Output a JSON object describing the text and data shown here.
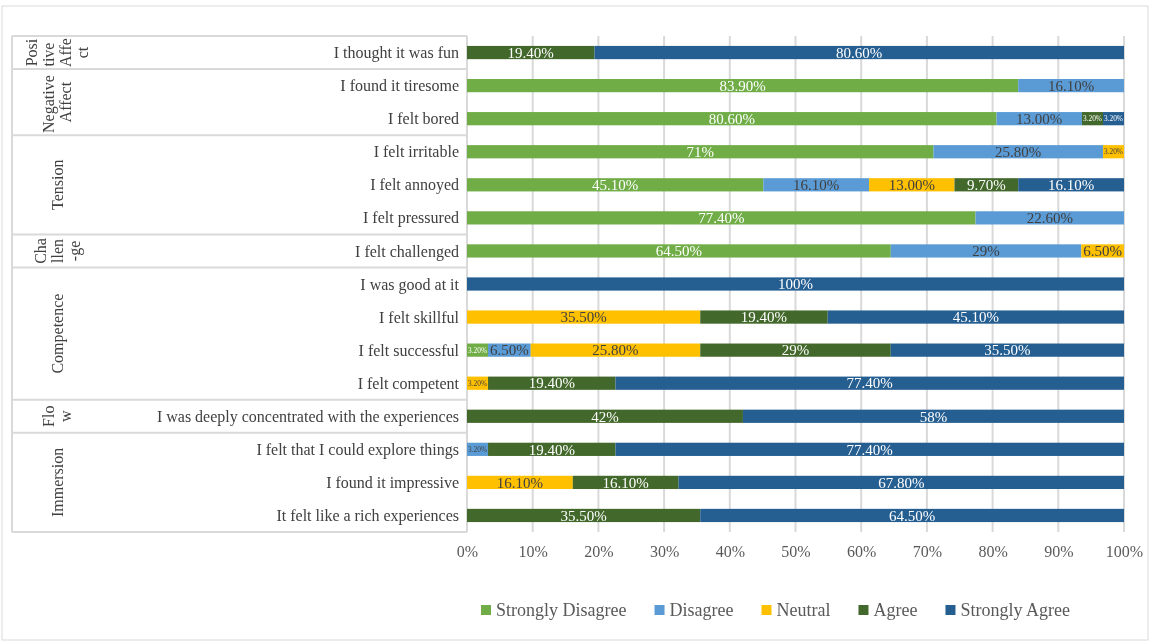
{
  "chart_data": {
    "type": "bar",
    "orientation": "horizontal",
    "stacked": true,
    "categories": [
      "I thought it was fun",
      "I found it tiresome",
      "I felt bored",
      "I felt irritable",
      "I felt annoyed",
      "I felt pressured",
      "I felt challenged",
      "I was good at it",
      "I felt skillful",
      "I felt successful",
      "I felt competent",
      "I was deeply concentrated with the experiences",
      "I felt that I could explore things",
      "I found it impressive",
      "It felt like a rich experiences"
    ],
    "series": [
      {
        "name": "Strongly Disagree",
        "color": "#70ad47",
        "values": [
          null,
          83.9,
          80.6,
          71,
          45.1,
          77.4,
          64.5,
          null,
          null,
          3.2,
          null,
          null,
          null,
          null,
          null
        ],
        "value_labels": [
          null,
          "83.90%",
          "80.60%",
          "71%",
          "45.10%",
          "77.40%",
          "64.50%",
          null,
          null,
          "3.20%",
          null,
          null,
          null,
          null,
          null
        ]
      },
      {
        "name": "Disagree",
        "color": "#5b9bd5",
        "values": [
          null,
          16.1,
          13.0,
          25.8,
          16.1,
          22.6,
          29,
          null,
          null,
          6.5,
          null,
          null,
          3.2,
          null,
          null
        ],
        "value_labels": [
          null,
          "16.10%",
          "13.00%",
          "25.80%",
          "16.10%",
          "22.60%",
          "29%",
          null,
          null,
          "6.50%",
          null,
          null,
          "3.20%",
          null,
          null
        ]
      },
      {
        "name": "Neutral",
        "color": "#ffc000",
        "values": [
          null,
          null,
          null,
          3.2,
          13.0,
          null,
          6.5,
          null,
          35.5,
          25.8,
          3.2,
          null,
          null,
          16.1,
          null
        ],
        "value_labels": [
          null,
          null,
          null,
          "3.20%",
          "13.00%",
          null,
          "6.50%",
          null,
          "35.50%",
          "25.80%",
          "3.20%",
          null,
          null,
          "16.10%",
          null
        ]
      },
      {
        "name": "Agree",
        "color": "#43682b",
        "values": [
          19.4,
          null,
          3.2,
          null,
          9.7,
          null,
          null,
          null,
          19.4,
          29,
          19.4,
          42,
          19.4,
          16.1,
          35.5
        ],
        "value_labels": [
          "19.40%",
          null,
          "3.20%",
          null,
          "9.70%",
          null,
          null,
          null,
          "19.40%",
          "29%",
          "19.40%",
          "42%",
          "19.40%",
          "16.10%",
          "35.50%"
        ]
      },
      {
        "name": "Strongly Agree",
        "color": "#255e91",
        "values": [
          80.6,
          null,
          3.2,
          null,
          16.1,
          null,
          null,
          100,
          45.1,
          35.5,
          77.4,
          58,
          77.4,
          67.8,
          64.5
        ],
        "value_labels": [
          "80.60%",
          null,
          "3.20%",
          null,
          "16.10%",
          null,
          null,
          "100%",
          "45.10%",
          "35.50%",
          "77.40%",
          "58%",
          "77.40%",
          "67.80%",
          "64.50%"
        ]
      }
    ],
    "xlim": [
      0,
      100
    ],
    "xticks": [
      {
        "value": 0,
        "label": "0%"
      },
      {
        "value": 10,
        "label": "10%"
      },
      {
        "value": 20,
        "label": "20%"
      },
      {
        "value": 30,
        "label": "30%"
      },
      {
        "value": 40,
        "label": "40%"
      },
      {
        "value": 50,
        "label": "50%"
      },
      {
        "value": 60,
        "label": "60%"
      },
      {
        "value": 70,
        "label": "70%"
      },
      {
        "value": 80,
        "label": "80%"
      },
      {
        "value": 90,
        "label": "90%"
      },
      {
        "value": 100,
        "label": "100%"
      }
    ],
    "grid": "x",
    "legend": "bottom",
    "annotations": [
      "Positive Affect",
      "Negative Affect",
      "Tension",
      "Challen-ge",
      "Competence",
      "Flow",
      "Immersion"
    ]
  }
}
